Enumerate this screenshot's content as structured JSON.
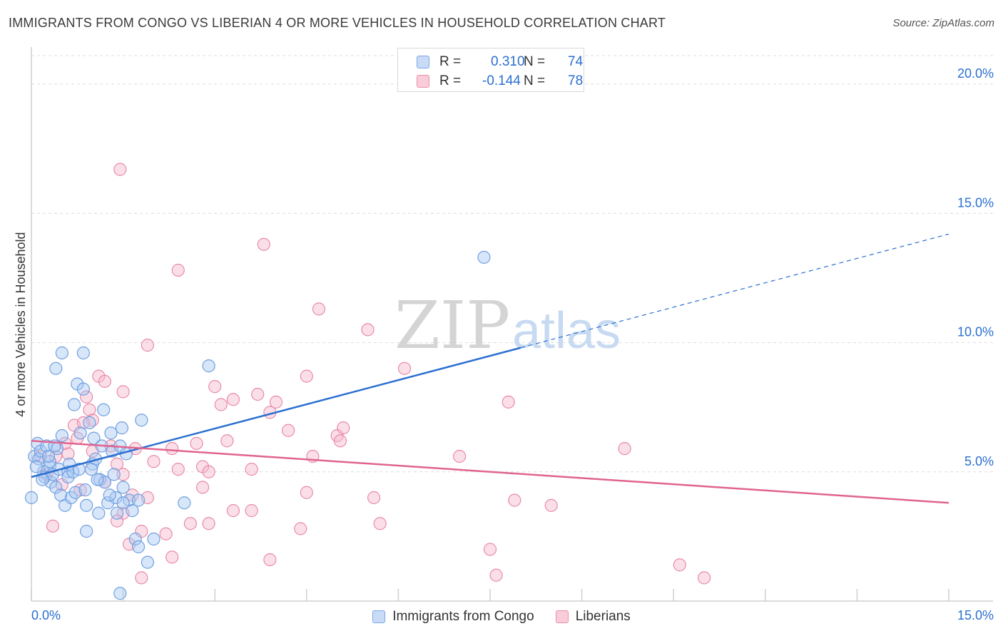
{
  "header": {
    "title": "IMMIGRANTS FROM CONGO VS LIBERIAN 4 OR MORE VEHICLES IN HOUSEHOLD CORRELATION CHART",
    "source": "Source: ZipAtlas.com"
  },
  "watermark": {
    "zip": "ZIP",
    "atlas": "atlas"
  },
  "stats": [
    {
      "r_label": "R =",
      "r_value": "0.310",
      "n_label": "N =",
      "n_value": "74"
    },
    {
      "r_label": "R =",
      "r_value": "-0.144",
      "n_label": "N =",
      "n_value": "78"
    }
  ],
  "legend": {
    "series1": "Immigrants from Congo",
    "series2": "Liberians"
  },
  "colors": {
    "blue_fill": "#a9c8f2",
    "blue_stroke": "#6f9fe0",
    "blue_line": "#2b6fd0",
    "pink_fill": "#f6b8cb",
    "pink_stroke": "#e88aa8",
    "pink_line": "#e0648f",
    "axis_text": "#2a6fd1"
  },
  "chart_data": {
    "type": "scatter",
    "title": "IMMIGRANTS FROM CONGO VS LIBERIAN 4 OR MORE VEHICLES IN HOUSEHOLD CORRELATION CHART",
    "xlabel": "",
    "ylabel": "4 or more Vehicles in Household",
    "xlim": [
      0,
      15
    ],
    "ylim": [
      0,
      20
    ],
    "x_tick_labels": [
      "0.0%",
      "15.0%"
    ],
    "y_tick_labels": [
      "5.0%",
      "10.0%",
      "15.0%",
      "20.0%"
    ],
    "y_ticks": [
      5,
      10,
      15,
      20
    ],
    "x_ticks": [
      0,
      1.5,
      3,
      4.5,
      6,
      7.5,
      9,
      10.5,
      12,
      13.5,
      15
    ],
    "grid": "horizontal dashed",
    "series": [
      {
        "name": "Immigrants from Congo",
        "color": "#6f9fe0",
        "trend": {
          "x0": 0,
          "y0": 4.8,
          "x1": 8.0,
          "y1": 9.8,
          "dashed_to_x": 15,
          "dashed_to_y": 14.2
        },
        "points": [
          [
            0.0,
            4.0
          ],
          [
            0.05,
            5.6
          ],
          [
            0.1,
            6.1
          ],
          [
            0.12,
            5.5
          ],
          [
            0.15,
            5.8
          ],
          [
            0.2,
            5.0
          ],
          [
            0.22,
            4.8
          ],
          [
            0.25,
            6.0
          ],
          [
            0.3,
            5.2
          ],
          [
            0.32,
            4.6
          ],
          [
            0.35,
            4.9
          ],
          [
            0.4,
            4.4
          ],
          [
            0.42,
            5.9
          ],
          [
            0.45,
            5.1
          ],
          [
            0.5,
            6.4
          ],
          [
            0.55,
            3.7
          ],
          [
            0.6,
            5.0
          ],
          [
            0.62,
            5.3
          ],
          [
            0.65,
            4.0
          ],
          [
            0.7,
            7.6
          ],
          [
            0.72,
            4.2
          ],
          [
            0.75,
            8.4
          ],
          [
            0.8,
            6.5
          ],
          [
            0.85,
            8.2
          ],
          [
            0.88,
            4.3
          ],
          [
            0.9,
            3.7
          ],
          [
            0.95,
            6.9
          ],
          [
            1.0,
            5.3
          ],
          [
            1.02,
            6.3
          ],
          [
            1.05,
            5.5
          ],
          [
            1.1,
            3.4
          ],
          [
            1.12,
            4.7
          ],
          [
            1.15,
            6.0
          ],
          [
            1.18,
            7.4
          ],
          [
            1.2,
            4.6
          ],
          [
            1.25,
            3.8
          ],
          [
            1.3,
            6.5
          ],
          [
            1.32,
            5.8
          ],
          [
            1.35,
            4.9
          ],
          [
            1.38,
            4.0
          ],
          [
            1.4,
            3.4
          ],
          [
            1.45,
            6.0
          ],
          [
            1.5,
            4.4
          ],
          [
            1.55,
            5.7
          ],
          [
            1.6,
            3.9
          ],
          [
            1.65,
            3.5
          ],
          [
            1.7,
            2.4
          ],
          [
            1.75,
            3.9
          ],
          [
            1.8,
            7.0
          ],
          [
            1.9,
            1.5
          ],
          [
            2.0,
            2.4
          ],
          [
            1.5,
            3.8
          ],
          [
            0.4,
            9.0
          ],
          [
            0.5,
            9.6
          ],
          [
            0.85,
            9.6
          ],
          [
            0.9,
            2.7
          ],
          [
            1.45,
            0.3
          ],
          [
            2.5,
            3.8
          ],
          [
            2.9,
            9.1
          ],
          [
            7.4,
            13.3
          ],
          [
            1.75,
            2.1
          ],
          [
            0.3,
            5.4
          ],
          [
            0.6,
            4.8
          ],
          [
            0.18,
            4.7
          ],
          [
            0.28,
            5.6
          ],
          [
            0.38,
            6.0
          ],
          [
            0.48,
            4.1
          ],
          [
            0.68,
            5.0
          ],
          [
            1.08,
            4.7
          ],
          [
            1.28,
            4.1
          ],
          [
            1.48,
            6.7
          ],
          [
            0.08,
            5.2
          ],
          [
            0.78,
            5.1
          ],
          [
            0.98,
            5.1
          ]
        ]
      },
      {
        "name": "Liberians",
        "color": "#e88aa8",
        "trend": {
          "x0": 0,
          "y0": 6.2,
          "x1": 15,
          "y1": 3.8
        },
        "points": [
          [
            1.45,
            16.7
          ],
          [
            3.8,
            13.8
          ],
          [
            2.4,
            12.8
          ],
          [
            4.7,
            11.3
          ],
          [
            5.5,
            10.5
          ],
          [
            1.9,
            9.9
          ],
          [
            6.1,
            9.0
          ],
          [
            1.1,
            8.7
          ],
          [
            1.2,
            8.5
          ],
          [
            1.5,
            8.1
          ],
          [
            3.0,
            8.3
          ],
          [
            3.3,
            7.8
          ],
          [
            3.7,
            8.0
          ],
          [
            4.5,
            8.7
          ],
          [
            4.0,
            7.7
          ],
          [
            7.8,
            7.7
          ],
          [
            0.9,
            7.9
          ],
          [
            0.95,
            7.4
          ],
          [
            1.0,
            7.0
          ],
          [
            0.7,
            6.8
          ],
          [
            0.75,
            6.3
          ],
          [
            1.3,
            6.0
          ],
          [
            1.7,
            5.9
          ],
          [
            2.3,
            5.9
          ],
          [
            2.7,
            6.1
          ],
          [
            3.1,
            7.6
          ],
          [
            3.9,
            7.3
          ],
          [
            4.2,
            6.6
          ],
          [
            5.0,
            6.4
          ],
          [
            5.1,
            6.7
          ],
          [
            5.05,
            6.2
          ],
          [
            7.0,
            5.6
          ],
          [
            9.7,
            5.9
          ],
          [
            0.4,
            5.6
          ],
          [
            0.6,
            5.7
          ],
          [
            1.0,
            5.8
          ],
          [
            1.4,
            5.3
          ],
          [
            2.0,
            5.4
          ],
          [
            2.4,
            5.1
          ],
          [
            2.8,
            5.2
          ],
          [
            3.6,
            5.1
          ],
          [
            2.9,
            5.0
          ],
          [
            1.5,
            4.9
          ],
          [
            1.2,
            4.6
          ],
          [
            0.5,
            4.5
          ],
          [
            0.8,
            4.3
          ],
          [
            1.9,
            4.0
          ],
          [
            2.8,
            4.4
          ],
          [
            4.5,
            4.2
          ],
          [
            5.6,
            4.0
          ],
          [
            7.9,
            3.9
          ],
          [
            8.5,
            3.7
          ],
          [
            3.3,
            3.5
          ],
          [
            3.6,
            3.5
          ],
          [
            1.5,
            3.4
          ],
          [
            1.4,
            3.1
          ],
          [
            2.6,
            3.0
          ],
          [
            2.9,
            3.0
          ],
          [
            4.4,
            2.8
          ],
          [
            5.7,
            3.0
          ],
          [
            1.8,
            2.7
          ],
          [
            2.2,
            2.6
          ],
          [
            0.35,
            2.9
          ],
          [
            1.6,
            2.2
          ],
          [
            7.5,
            2.0
          ],
          [
            2.3,
            1.7
          ],
          [
            3.9,
            1.6
          ],
          [
            10.6,
            1.4
          ],
          [
            1.8,
            0.9
          ],
          [
            7.6,
            1.0
          ],
          [
            11.0,
            0.9
          ],
          [
            0.15,
            5.6
          ],
          [
            0.25,
            4.9
          ],
          [
            0.55,
            6.1
          ],
          [
            0.85,
            6.9
          ],
          [
            3.2,
            6.2
          ],
          [
            4.6,
            5.6
          ],
          [
            1.65,
            4.1
          ]
        ]
      }
    ]
  }
}
